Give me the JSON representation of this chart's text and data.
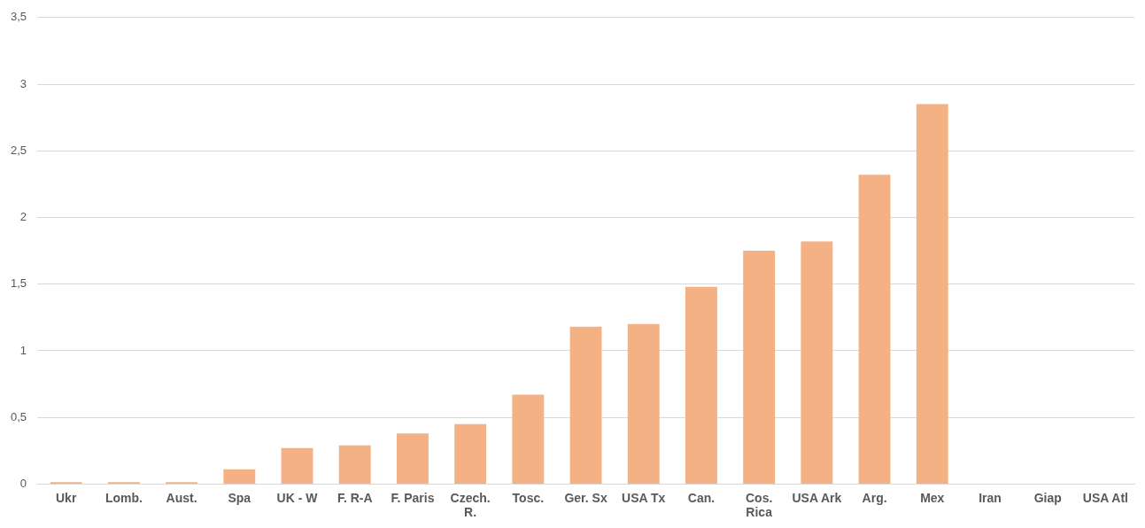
{
  "chart_data": {
    "type": "bar",
    "categories": [
      "Ukr",
      "Lomb.",
      "Aust.",
      "Spa",
      "UK - W",
      "F. R-A",
      "F. Paris",
      "Czech. R.",
      "Tosc.",
      "Ger. Sx",
      "USA Tx",
      "Can.",
      "Cos. Rica",
      "USA Ark",
      "Arg.",
      "Mex",
      "Iran",
      "Giap",
      "USA Atl"
    ],
    "values": [
      0.015,
      0.015,
      0.015,
      0.11,
      0.27,
      0.29,
      0.38,
      0.45,
      0.67,
      1.18,
      1.2,
      1.48,
      1.75,
      1.82,
      2.32,
      2.85,
      0,
      0,
      0
    ],
    "color": "#f4b183",
    "ylim": [
      0,
      3.5
    ],
    "yticks": [
      0,
      {
        "value": 0.5,
        "label": "0,5"
      },
      1,
      {
        "value": 1.5,
        "label": "1,5"
      },
      2,
      {
        "value": 2.5,
        "label": "2,5"
      },
      3,
      {
        "value": 3.5,
        "label": "3,5"
      }
    ],
    "grid": "y"
  }
}
